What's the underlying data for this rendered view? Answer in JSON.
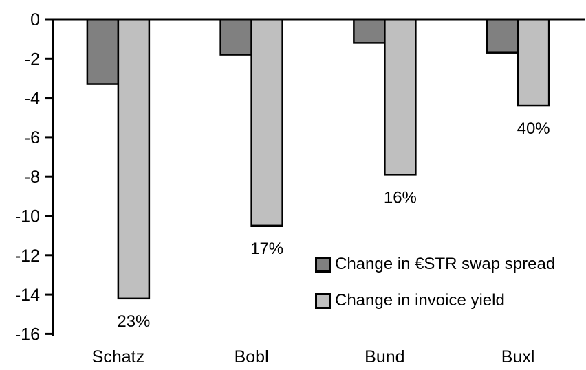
{
  "chart_data": {
    "type": "bar",
    "title": "",
    "xlabel": "",
    "ylabel": "",
    "categories": [
      "Schatz",
      "Bobl",
      "Bund",
      "Buxl"
    ],
    "series": [
      {
        "name": "Change in €STR swap spread",
        "slug": "swap-spread",
        "color": "#808080",
        "values": [
          -3.3,
          -1.8,
          -1.2,
          -1.7
        ]
      },
      {
        "name": "Change in invoice yield",
        "slug": "invoice-yield",
        "color": "#BFBFBF",
        "values": [
          -14.2,
          -10.5,
          -7.9,
          -4.4
        ],
        "data_labels": [
          "23%",
          "17%",
          "16%",
          "40%"
        ]
      }
    ],
    "ylim": [
      -16,
      0
    ],
    "y_ticks": [
      0,
      -2,
      -4,
      -6,
      -8,
      -10,
      -12,
      -14,
      -16
    ],
    "grid": false,
    "legend_position": "inside-center-right",
    "bar_outline_color": "#000000",
    "axis_color": "#000000",
    "text_color": "#000000",
    "background_color": "#FFFFFF"
  }
}
